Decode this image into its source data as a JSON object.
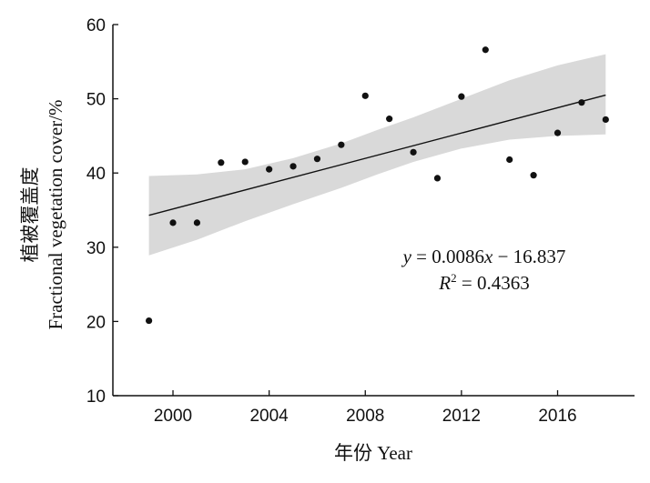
{
  "chart_data": {
    "type": "scatter",
    "title": "",
    "xlabel": "年份 Year",
    "ylabel_line1": "植被覆盖度",
    "ylabel_line2": "Fractional vegetation cover/%",
    "xlim": [
      1997.5,
      2019.2
    ],
    "ylim": [
      10,
      60
    ],
    "xticks": [
      2000,
      2004,
      2008,
      2012,
      2016
    ],
    "yticks": [
      10,
      20,
      30,
      40,
      50,
      60
    ],
    "grid": false,
    "legend": "none",
    "points": [
      {
        "x": 1999,
        "y": 20.1
      },
      {
        "x": 2000,
        "y": 33.3
      },
      {
        "x": 2001,
        "y": 33.3
      },
      {
        "x": 2002,
        "y": 41.4
      },
      {
        "x": 2003,
        "y": 41.5
      },
      {
        "x": 2004,
        "y": 40.5
      },
      {
        "x": 2005,
        "y": 40.9
      },
      {
        "x": 2006,
        "y": 41.9
      },
      {
        "x": 2007,
        "y": 43.8
      },
      {
        "x": 2008,
        "y": 50.4
      },
      {
        "x": 2009,
        "y": 47.3
      },
      {
        "x": 2010,
        "y": 42.8
      },
      {
        "x": 2011,
        "y": 39.3
      },
      {
        "x": 2012,
        "y": 50.3
      },
      {
        "x": 2013,
        "y": 56.6
      },
      {
        "x": 2014,
        "y": 41.8
      },
      {
        "x": 2015,
        "y": 39.7
      },
      {
        "x": 2016,
        "y": 45.4
      },
      {
        "x": 2017,
        "y": 49.5
      },
      {
        "x": 2018,
        "y": 47.2
      }
    ],
    "fit_line": {
      "x": [
        1999,
        2018
      ],
      "y": [
        34.3,
        50.5
      ]
    },
    "confidence_band": {
      "x": [
        1999,
        2001,
        2003,
        2005,
        2007,
        2008.5,
        2010,
        2012,
        2014,
        2016,
        2018
      ],
      "upper": [
        39.6,
        39.8,
        40.5,
        42.0,
        44.0,
        45.8,
        47.5,
        50.0,
        52.5,
        54.5,
        56.0
      ],
      "lower": [
        28.9,
        31.0,
        33.5,
        35.8,
        38.0,
        39.8,
        41.5,
        43.3,
        44.5,
        45.0,
        45.2
      ]
    },
    "annotation": {
      "equation_y": "y",
      "equation_rest": " = 0.0086",
      "equation_x": "x",
      "equation_tail": " − 16.837",
      "r2_label": "R",
      "r2_sup": "2",
      "r2_value": " = 0.4363"
    },
    "colors": {
      "point": "#111111",
      "fit_line": "#111111",
      "band": "#d9d9d9",
      "axis": "#111111"
    }
  }
}
